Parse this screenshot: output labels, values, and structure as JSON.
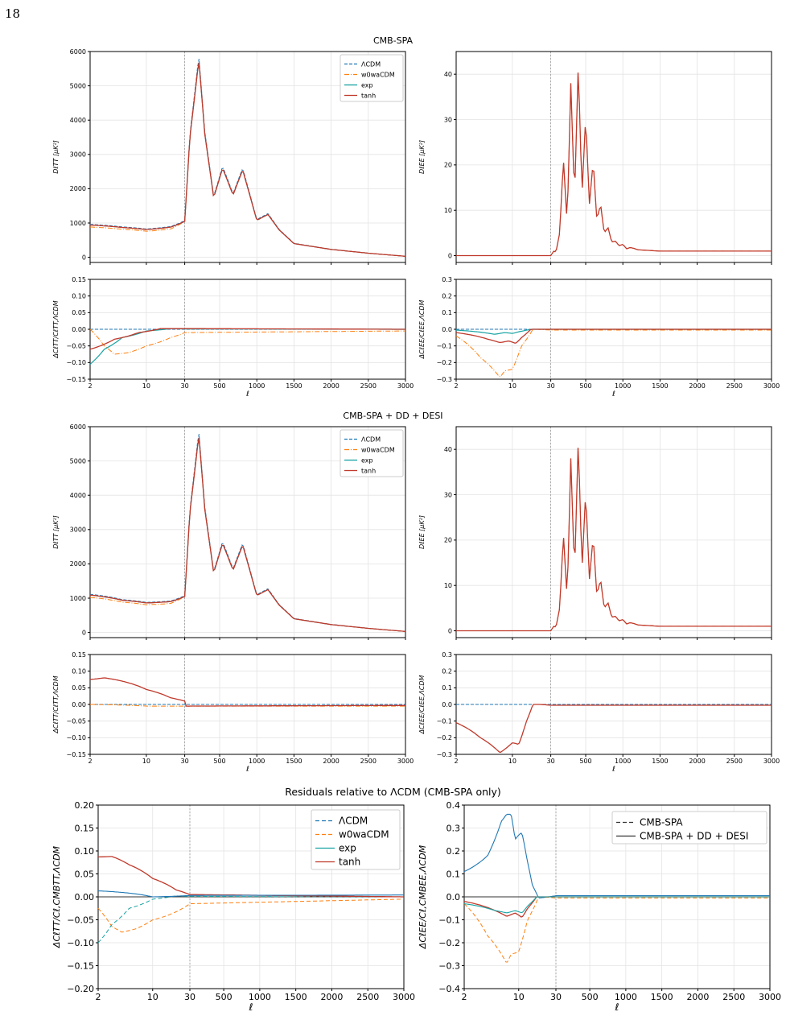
{
  "page_number": "18",
  "section_titles": [
    "CMB-SPA",
    "CMB-SPA + DD + DESI",
    "Residuals relative to ΛCDM (CMB-SPA only)"
  ],
  "colors": {
    "lcdm": "#1f77b4",
    "w0wa": "#ff7f0e",
    "exp": "#17a2a2",
    "tanh": "#c0392b",
    "dark": "#333333",
    "grid": "#e3e3e3"
  },
  "legend_models": [
    "ΛCDM",
    "w0waCDM",
    "exp",
    "tanh"
  ],
  "legend_datasets": [
    "CMB-SPA",
    "CMB-SPA + DD + DESI"
  ],
  "chart_data": [
    {
      "type": "line",
      "panel": "TT spectrum (CMB-SPA)",
      "ylabel": "D_l^TT [μK^2]",
      "xscale": "log below 30, linear above",
      "xlim": [
        2,
        3000
      ],
      "ylim": [
        -150,
        6000
      ],
      "xticks": [
        "2",
        "10",
        "30",
        "500",
        "1000",
        "1500",
        "2000",
        "2500",
        "3000"
      ],
      "yticks": [
        "0",
        "1000",
        "2000",
        "3000",
        "4000",
        "5000",
        "6000"
      ],
      "series": [
        {
          "name": "tanh",
          "x": [
            2,
            5,
            10,
            20,
            30,
            100,
            220,
            300,
            420,
            540,
            680,
            810,
            1000,
            1150,
            1300,
            1500,
            2000,
            2500,
            3000
          ],
          "y": [
            940,
            870,
            810,
            880,
            1050,
            3500,
            5750,
            3600,
            1740,
            2600,
            1820,
            2550,
            1080,
            1250,
            800,
            400,
            230,
            120,
            30
          ]
        }
      ]
    },
    {
      "type": "line",
      "panel": "EE spectrum (CMB-SPA)",
      "ylabel": "D_l^EE [μK^2]",
      "xlim": [
        2,
        3000
      ],
      "ylim": [
        -1.5,
        45
      ],
      "yticks": [
        "0",
        "10",
        "20",
        "30",
        "40"
      ],
      "series": [
        {
          "name": "tanh",
          "x": [
            2,
            10,
            30,
            70,
            100,
            150,
            200,
            250,
            300,
            350,
            400,
            450,
            500,
            550,
            600,
            650,
            700,
            750,
            800,
            850,
            900,
            950,
            1000,
            1050,
            1100,
            1150,
            1200,
            1300,
            1400,
            1500,
            1600,
            1700,
            1800,
            1900,
            2000,
            2100,
            2200,
            2300,
            2400,
            2500,
            2700,
            2900,
            3000
          ],
          "y": [
            0,
            0,
            0,
            1,
            0.8,
            5,
            21.5,
            7,
            38,
            12.5,
            42.5,
            13.5,
            30.8,
            11.3,
            20.8,
            8,
            11.3,
            5,
            6.2,
            3,
            3.2,
            2.2,
            2.5,
            1.5,
            1.8,
            1.6,
            1.3,
            1.2,
            1.1,
            1,
            1,
            1,
            1,
            1,
            1,
            1,
            1,
            1,
            1,
            1,
            1,
            1,
            1
          ]
        }
      ]
    },
    {
      "type": "line",
      "panel": "TT residual (CMB-SPA)",
      "ylabel": "ΔC_l^TT/C_l^TT,ΛCDM",
      "ylim": [
        -0.15,
        0.15
      ],
      "yticks": [
        "−0.15",
        "−0.10",
        "−0.05",
        "0.00",
        "0.05",
        "0.10",
        "0.15"
      ],
      "series": [
        {
          "name": "ΛCDM",
          "x": [
            2,
            3000
          ],
          "y": [
            0,
            0
          ]
        },
        {
          "name": "w0waCDM",
          "x": [
            2,
            3,
            4,
            6,
            10,
            20,
            30,
            3000
          ],
          "y": [
            0,
            -0.05,
            -0.075,
            -0.07,
            -0.05,
            -0.025,
            -0.01,
            -0.005
          ]
        },
        {
          "name": "exp",
          "x": [
            2,
            3,
            5,
            10,
            20,
            30,
            3000
          ],
          "y": [
            -0.105,
            -0.06,
            -0.025,
            -0.005,
            0.002,
            0.001,
            0
          ]
        },
        {
          "name": "tanh",
          "x": [
            2,
            4,
            8,
            15,
            30,
            3000
          ],
          "y": [
            -0.06,
            -0.03,
            -0.01,
            0.002,
            0.002,
            0
          ]
        }
      ]
    },
    {
      "type": "line",
      "panel": "EE residual (CMB-SPA)",
      "ylabel": "ΔC_l^EE/C_l^EE,ΛCDM",
      "ylim": [
        -0.3,
        0.3
      ],
      "yticks": [
        "−0.3",
        "−0.2",
        "−0.1",
        "0.0",
        "0.1",
        "0.2",
        "0.3"
      ],
      "series": [
        {
          "name": "ΛCDM",
          "x": [
            2,
            3000
          ],
          "y": [
            0,
            0
          ]
        },
        {
          "name": "w0waCDM",
          "x": [
            2,
            4,
            7,
            8,
            10,
            13,
            18,
            20,
            30,
            3000
          ],
          "y": [
            -0.04,
            -0.17,
            -0.29,
            -0.25,
            -0.24,
            -0.1,
            0,
            0,
            -0.005,
            -0.005
          ]
        },
        {
          "name": "exp",
          "x": [
            2,
            6,
            8,
            10,
            12,
            15,
            18,
            30,
            3000
          ],
          "y": [
            -0.005,
            -0.03,
            -0.02,
            -0.025,
            -0.015,
            -0.005,
            0,
            0,
            0
          ]
        },
        {
          "name": "tanh",
          "x": [
            2,
            5,
            7,
            9,
            11,
            13,
            17,
            30,
            3000
          ],
          "y": [
            -0.02,
            -0.06,
            -0.08,
            -0.07,
            -0.085,
            -0.05,
            0,
            0,
            0
          ]
        }
      ]
    },
    {
      "type": "line",
      "panel": "TT spectrum (CMB-SPA + DD + DESI)",
      "ylim": [
        -150,
        6000
      ],
      "series": [
        {
          "name": "tanh",
          "x": [
            2,
            5,
            10,
            20,
            30,
            100,
            220,
            300,
            420,
            540,
            680,
            810,
            1000,
            1150,
            1300,
            1500,
            2000,
            2500,
            3000
          ],
          "y": [
            1090,
            940,
            860,
            900,
            1050,
            3500,
            5750,
            3600,
            1740,
            2600,
            1820,
            2550,
            1080,
            1250,
            800,
            400,
            230,
            120,
            30
          ]
        }
      ]
    },
    {
      "type": "line",
      "panel": "EE spectrum (CMB-SPA + DD + DESI)",
      "ylim": [
        -1.5,
        45
      ]
    },
    {
      "type": "line",
      "panel": "TT residual (CMB-SPA + DD + DESI)",
      "ylim": [
        -0.15,
        0.15
      ],
      "series": [
        {
          "name": "ΛCDM",
          "x": [
            2,
            3000
          ],
          "y": [
            0,
            0
          ]
        },
        {
          "name": "w0waCDM",
          "x": [
            2,
            10,
            30,
            3000
          ],
          "y": [
            0,
            -0.005,
            -0.005,
            -0.005
          ]
        },
        {
          "name": "tanh",
          "x": [
            2,
            3,
            5,
            10,
            20,
            30,
            35,
            3000
          ],
          "y": [
            0.075,
            0.08,
            0.07,
            0.045,
            0.02,
            0.01,
            -0.005,
            -0.003
          ]
        }
      ]
    },
    {
      "type": "line",
      "panel": "EE residual (CMB-SPA + DD + DESI)",
      "ylim": [
        -0.3,
        0.3
      ],
      "series": [
        {
          "name": "ΛCDM",
          "x": [
            2,
            3000
          ],
          "y": [
            0,
            0
          ]
        },
        {
          "name": "tanh",
          "x": [
            2,
            4,
            7,
            8,
            10,
            12,
            15,
            18,
            22,
            30,
            3000
          ],
          "y": [
            -0.11,
            -0.2,
            -0.29,
            -0.27,
            -0.23,
            -0.24,
            -0.1,
            0,
            0,
            -0.005,
            -0.005
          ]
        }
      ]
    },
    {
      "type": "line",
      "panel": "Residuals relative to ΛCDM, TT",
      "ylabel": "ΔC_l^TT/C_l,CMB^TT,ΛCDM",
      "ylim": [
        -0.2,
        0.2
      ],
      "yticks": [
        "−0.20",
        "−0.15",
        "−0.10",
        "−0.05",
        "0.00",
        "0.05",
        "0.10",
        "0.15",
        "0.20"
      ],
      "series": [
        {
          "name": "w0waCDM",
          "x": [
            2,
            3,
            4,
            6,
            10,
            30,
            3000
          ],
          "y": [
            -0.025,
            -0.065,
            -0.077,
            -0.07,
            -0.05,
            -0.015,
            -0.005
          ]
        },
        {
          "name": "exp",
          "x": [
            2,
            3,
            5,
            10,
            20,
            30,
            3000
          ],
          "y": [
            -0.1,
            -0.06,
            -0.025,
            -0.005,
            0.002,
            0.001,
            0
          ]
        },
        {
          "name": "tanh",
          "x": [
            2,
            3,
            5,
            10,
            20,
            30,
            3000
          ],
          "y": [
            0.087,
            0.088,
            0.07,
            0.04,
            0.015,
            0.005,
            0
          ]
        }
      ]
    },
    {
      "type": "line",
      "panel": "Residuals relative to ΛCDM, EE",
      "ylabel": "ΔC_l^EE/C_l,CMB^EE,ΛCDM",
      "ylim": [
        -0.4,
        0.4
      ],
      "yticks": [
        "−0.4",
        "−0.3",
        "−0.2",
        "−0.1",
        "0.0",
        "0.1",
        "0.2",
        "0.3",
        "0.4"
      ],
      "series": [
        {
          "name": "ΛCDM",
          "x": [
            2,
            4,
            6,
            7,
            8,
            9,
            10,
            11,
            13,
            15,
            18,
            30,
            3000
          ],
          "y": [
            0.11,
            0.18,
            0.33,
            0.36,
            0.36,
            0.25,
            0.27,
            0.28,
            0.15,
            0.05,
            -0.005,
            0.005,
            0.005
          ]
        },
        {
          "name": "w0waCDM",
          "x": [
            2,
            4,
            7,
            8,
            10,
            13,
            18,
            20,
            30,
            3000
          ],
          "y": [
            -0.03,
            -0.17,
            -0.29,
            -0.25,
            -0.24,
            -0.1,
            0,
            0,
            -0.005,
            -0.005
          ]
        },
        {
          "name": "tanh",
          "x": [
            2,
            5,
            7,
            9,
            11,
            13,
            17,
            30,
            3000
          ],
          "y": [
            -0.02,
            -0.06,
            -0.085,
            -0.07,
            -0.09,
            -0.05,
            0,
            0,
            0
          ]
        }
      ]
    }
  ]
}
